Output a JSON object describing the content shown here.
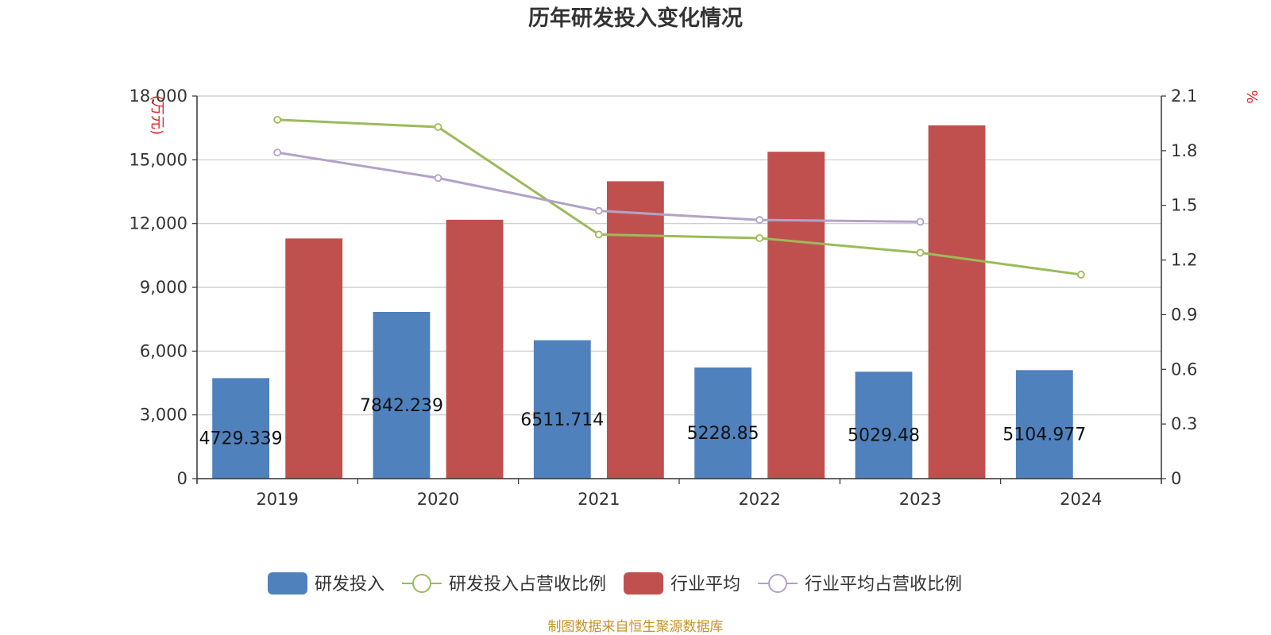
{
  "chart_data": {
    "type": "bar",
    "title": "历年研发投入变化情况",
    "categories": [
      "2019",
      "2020",
      "2021",
      "2022",
      "2023",
      "2024"
    ],
    "left_axis": {
      "unit": "万元",
      "ylim": [
        0,
        18000
      ],
      "ticks": [
        "0",
        "3,000",
        "6,000",
        "9,000",
        "12,000",
        "15,000",
        "18,000"
      ]
    },
    "right_axis": {
      "unit": "%",
      "ylim": [
        0,
        2.1
      ],
      "ticks": [
        "0",
        "0.3",
        "0.6",
        "0.9",
        "1.2",
        "1.5",
        "1.8",
        "2.1"
      ]
    },
    "series": [
      {
        "name": "研发投入",
        "type": "bar",
        "axis": "left",
        "color": "#4f81bd",
        "values": [
          4729.339,
          7842.239,
          6511.714,
          5228.85,
          5029.48,
          5104.977
        ],
        "labels": [
          "4729.339",
          "7842.239",
          "6511.714",
          "5228.85",
          "5029.48",
          "5104.977"
        ]
      },
      {
        "name": "研发投入占营收比例",
        "type": "line",
        "axis": "right",
        "color": "#9bbb59",
        "values": [
          1.97,
          1.93,
          1.34,
          1.32,
          1.24,
          1.12
        ]
      },
      {
        "name": "行业平均",
        "type": "bar",
        "axis": "left",
        "color": "#c0504d",
        "values": [
          11300,
          12180,
          13990,
          15380,
          16620,
          null
        ]
      },
      {
        "name": "行业平均占营收比例",
        "type": "line",
        "axis": "right",
        "color": "#b3a2c7",
        "values": [
          1.79,
          1.65,
          1.47,
          1.42,
          1.41,
          null
        ]
      }
    ],
    "grid": true,
    "legend_position": "bottom"
  },
  "source_note": "制图数据来自恒生聚源数据库"
}
